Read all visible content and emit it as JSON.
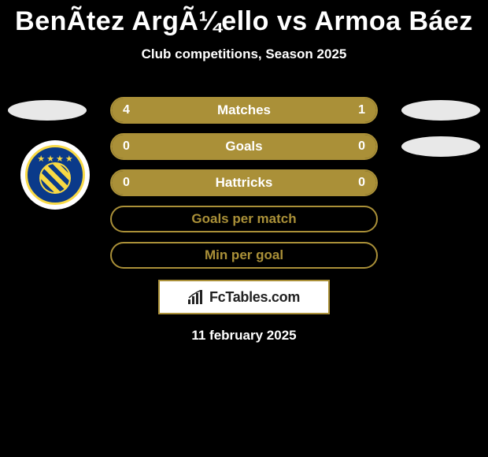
{
  "title": "BenÃ­tez ArgÃ¼ello vs Armoa Báez",
  "subtitle": "Club competitions, Season 2025",
  "colors": {
    "background": "#000000",
    "pill_fill": "#aa9038",
    "pill_border": "#aa9038",
    "pill_empty": "#000000",
    "text": "#ffffff",
    "side_oval": "#e8e8e8",
    "footer_border": "#aa9038",
    "footer_bg": "#ffffff",
    "footer_text": "#222222",
    "logo_blue": "#0a3a8a",
    "logo_yellow": "#f8d944"
  },
  "layout": {
    "pill_width": 340,
    "pill_height": 34,
    "pill_radius": 17,
    "title_fontsize": 34,
    "subtitle_fontsize": 17,
    "label_fontsize": 17,
    "value_fontsize": 16
  },
  "rows": [
    {
      "label": "Matches",
      "left_value": "4",
      "right_value": "1",
      "left_fill_pct": 80,
      "right_fill_pct": 20,
      "show_left_oval": true,
      "show_right_oval": true,
      "empty_style": false
    },
    {
      "label": "Goals",
      "left_value": "0",
      "right_value": "0",
      "left_fill_pct": 50,
      "right_fill_pct": 50,
      "show_left_oval": false,
      "show_right_oval": true,
      "empty_style": false
    },
    {
      "label": "Hattricks",
      "left_value": "0",
      "right_value": "0",
      "left_fill_pct": 50,
      "right_fill_pct": 50,
      "show_left_oval": false,
      "show_right_oval": false,
      "empty_style": false
    },
    {
      "label": "Goals per match",
      "left_value": "",
      "right_value": "",
      "left_fill_pct": 0,
      "right_fill_pct": 0,
      "show_left_oval": false,
      "show_right_oval": false,
      "empty_style": true
    },
    {
      "label": "Min per goal",
      "left_value": "",
      "right_value": "",
      "left_fill_pct": 0,
      "right_fill_pct": 0,
      "show_left_oval": false,
      "show_right_oval": false,
      "empty_style": true
    }
  ],
  "footer": {
    "brand": "FcTables.com",
    "date": "11 february 2025"
  }
}
